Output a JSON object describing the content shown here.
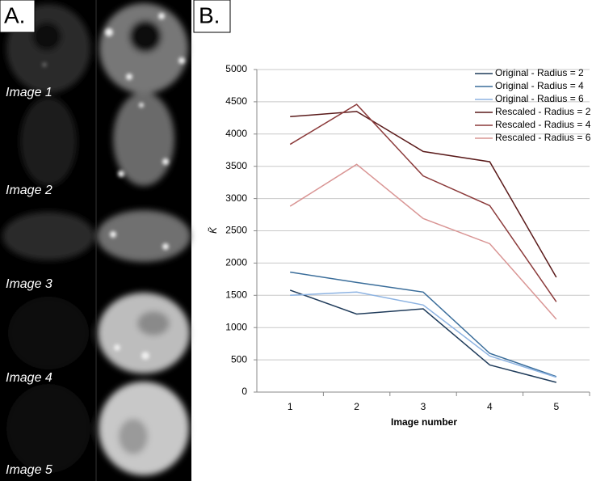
{
  "panel_a": {
    "label": "A.",
    "images": [
      "Image 1",
      "Image 2",
      "Image 3",
      "Image 4",
      "Image 5"
    ]
  },
  "panel_b": {
    "label": "B."
  },
  "chart_data": {
    "type": "line",
    "x_label": "Image number",
    "y_label": "K̃",
    "categories": [
      1,
      2,
      3,
      4,
      5
    ],
    "ylim": [
      0,
      5000
    ],
    "yticks": [
      0,
      500,
      1000,
      1500,
      2000,
      2500,
      3000,
      3500,
      4000,
      4500,
      5000
    ],
    "grid": true,
    "legend": "upper right",
    "series": [
      {
        "name": "Original - Radius = 2",
        "color": "#1f3b5a",
        "values": [
          1580,
          1210,
          1290,
          420,
          150
        ]
      },
      {
        "name": "Original - Radius = 4",
        "color": "#3a6d9a",
        "values": [
          1860,
          1700,
          1550,
          600,
          240
        ]
      },
      {
        "name": "Original - Radius = 6",
        "color": "#8db3e2",
        "values": [
          1500,
          1550,
          1350,
          560,
          230
        ]
      },
      {
        "name": "Rescaled - Radius = 2",
        "color": "#5a1a1a",
        "values": [
          4270,
          4350,
          3730,
          3570,
          1780
        ]
      },
      {
        "name": "Rescaled - Radius = 4",
        "color": "#8b3a3a",
        "values": [
          3840,
          4460,
          3350,
          2890,
          1400
        ]
      },
      {
        "name": "Rescaled - Radius = 6",
        "color": "#d99594",
        "values": [
          2880,
          3530,
          2690,
          2300,
          1130
        ]
      }
    ]
  }
}
